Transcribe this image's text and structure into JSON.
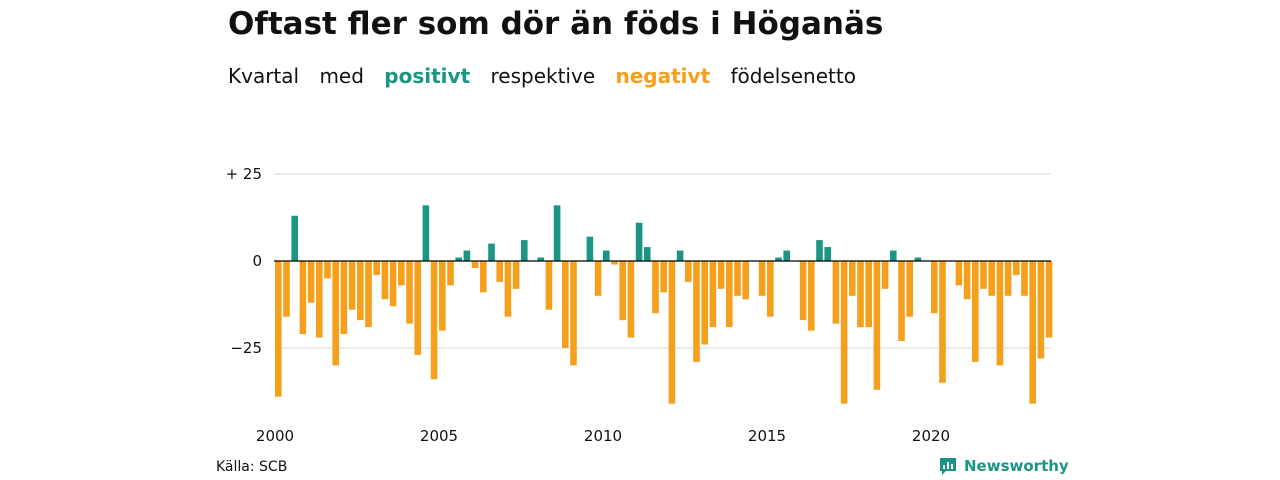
{
  "title": "Oftast fler som dör än föds i Höganäs",
  "subtitle": {
    "part1": "Kvartal",
    "part2": "med",
    "positive": "positivt",
    "part3": "respektive",
    "negative": "negativt",
    "part4": "födelsenetto"
  },
  "source": "Källa: SCB",
  "brand": {
    "name": "Newsworthy",
    "icon": "newsworthy-logo-icon"
  },
  "colors": {
    "positive": "#1a9682",
    "negative": "#f5a01c",
    "grid": "#d9d9d9",
    "zero": "#000000"
  },
  "chart_data": {
    "type": "bar",
    "x_start": "2000 Q1",
    "x_ticks": [
      {
        "label": "2000",
        "year": 2000
      },
      {
        "label": "2005",
        "year": 2005
      },
      {
        "label": "2010",
        "year": 2010
      },
      {
        "label": "2015",
        "year": 2015
      },
      {
        "label": "2020",
        "year": 2020
      }
    ],
    "y_ticks": [
      {
        "label": "+ 25",
        "value": 25
      },
      {
        "label": "0",
        "value": 0
      },
      {
        "label": "−25",
        "value": -25
      }
    ],
    "ylim": [
      -42,
      25
    ],
    "grid": true,
    "values": [
      -39,
      -16,
      13,
      -21,
      -12,
      -22,
      -5,
      -30,
      -21,
      -14,
      -17,
      -19,
      -4,
      -11,
      -13,
      -7,
      -18,
      -27,
      16,
      -34,
      -20,
      -7,
      1,
      3,
      -2,
      -9,
      5,
      -6,
      -16,
      -8,
      6,
      0,
      1,
      -14,
      16,
      -25,
      -30,
      0,
      7,
      -10,
      3,
      -1,
      -17,
      -22,
      11,
      4,
      -15,
      -9,
      -41,
      3,
      -6,
      -29,
      -24,
      -19,
      -8,
      -19,
      -10,
      -11,
      0,
      -10,
      -16,
      1,
      3,
      0,
      -17,
      -20,
      6,
      4,
      -18,
      -41,
      -10,
      -19,
      -19,
      -37,
      -8,
      3,
      -23,
      -16,
      1,
      0,
      -15,
      -35,
      0,
      -7,
      -11,
      -29,
      -8,
      -10,
      -30,
      -10,
      -4,
      -10,
      -41,
      -28,
      -22
    ]
  }
}
